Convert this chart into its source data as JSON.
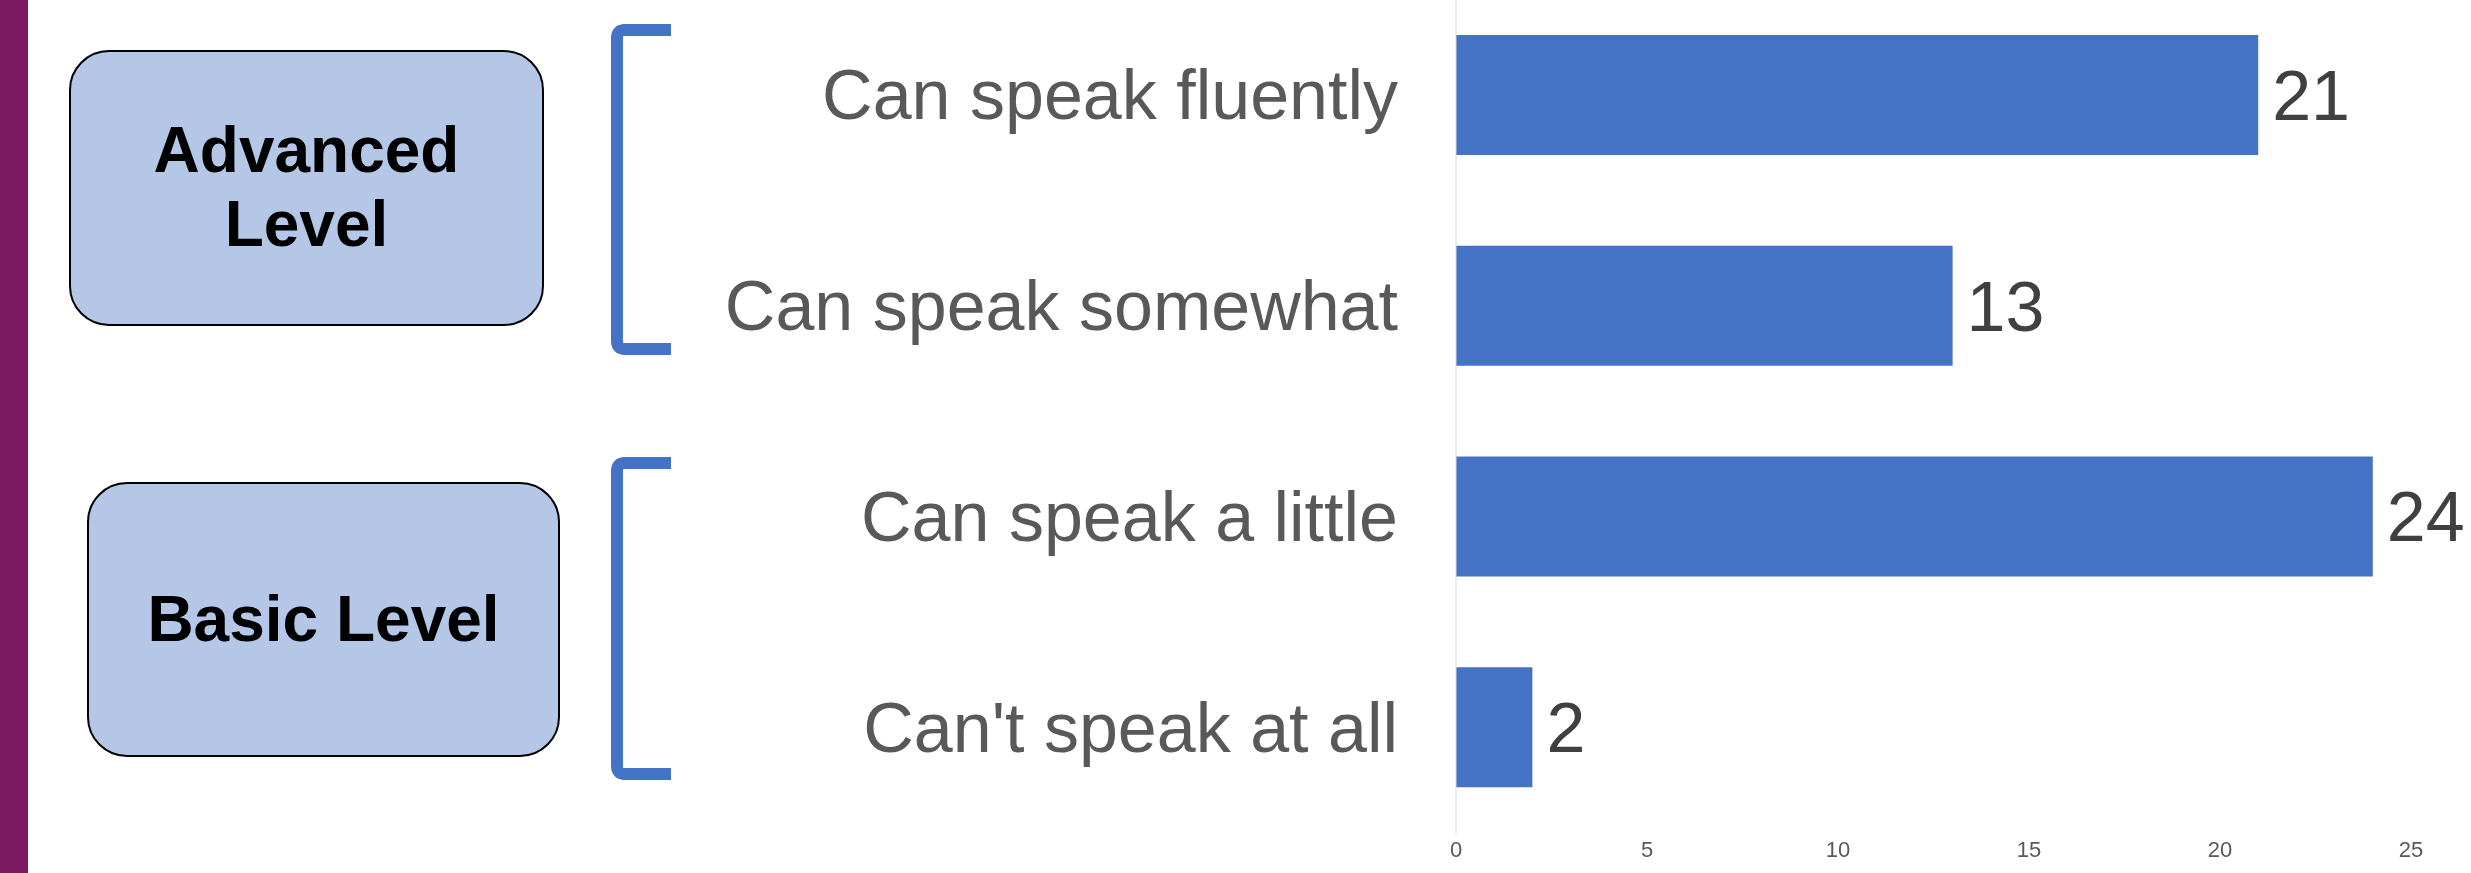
{
  "chart_data": {
    "type": "bar",
    "orientation": "horizontal",
    "categories": [
      "Can speak fluently",
      "Can speak somewhat",
      "Can speak a little",
      "Can't speak at all"
    ],
    "values": [
      21,
      13,
      24,
      2
    ],
    "color": "#4472c4",
    "data_labels": true,
    "xlim": [
      0,
      25
    ],
    "xticks": [
      0,
      5,
      10,
      15,
      20,
      25
    ],
    "annotations": [
      "Advanced Level",
      "Basic Level"
    ]
  }
}
